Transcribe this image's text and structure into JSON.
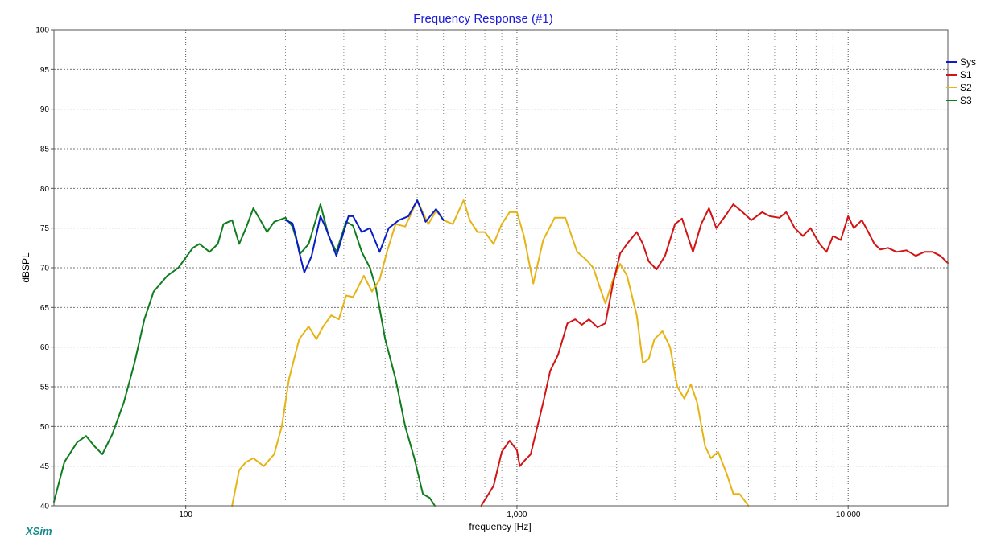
{
  "window": {
    "brand": "XSim"
  },
  "chart_data": {
    "type": "line",
    "title": "Frequency Response (#1)",
    "xlabel": "frequency [Hz]",
    "ylabel": "dBSPL",
    "x_scale": "log",
    "xlim": [
      40,
      20000
    ],
    "ylim": [
      40,
      100
    ],
    "grid": true,
    "legend_position": "top-right",
    "y_ticks": [
      40,
      45,
      50,
      55,
      60,
      65,
      70,
      75,
      80,
      85,
      90,
      95,
      100
    ],
    "x_ticks": [
      {
        "value": 100,
        "label": "100"
      },
      {
        "value": 1000,
        "label": "1,000"
      },
      {
        "value": 10000,
        "label": "10,000"
      }
    ],
    "x_gridlines": [
      100,
      200,
      300,
      400,
      500,
      600,
      700,
      800,
      900,
      1000,
      2000,
      3000,
      4000,
      5000,
      6000,
      7000,
      8000,
      9000,
      10000
    ],
    "series": [
      {
        "name": "Sys",
        "color": "#0a1ec8",
        "points": [
          [
            200,
            76
          ],
          [
            210,
            75.6
          ],
          [
            215,
            74
          ],
          [
            220,
            72
          ],
          [
            228,
            69.4
          ],
          [
            240,
            71.5
          ],
          [
            255,
            76.5
          ],
          [
            265,
            75
          ],
          [
            285,
            71.5
          ],
          [
            310,
            76.5
          ],
          [
            320,
            76.5
          ],
          [
            340,
            74.5
          ],
          [
            360,
            75
          ],
          [
            385,
            72
          ],
          [
            410,
            75
          ],
          [
            440,
            76
          ],
          [
            470,
            76.5
          ],
          [
            500,
            78.5
          ],
          [
            530,
            75.8
          ],
          [
            570,
            77.4
          ],
          [
            600,
            76
          ]
        ]
      },
      {
        "name": "S1",
        "color": "#d21414",
        "points": [
          [
            780,
            40
          ],
          [
            850,
            42.5
          ],
          [
            900,
            46.8
          ],
          [
            950,
            48.2
          ],
          [
            1000,
            47
          ],
          [
            1020,
            45
          ],
          [
            1060,
            45.8
          ],
          [
            1100,
            46.5
          ],
          [
            1200,
            53
          ],
          [
            1260,
            57
          ],
          [
            1330,
            59
          ],
          [
            1420,
            63
          ],
          [
            1500,
            63.5
          ],
          [
            1570,
            62.8
          ],
          [
            1650,
            63.5
          ],
          [
            1750,
            62.5
          ],
          [
            1850,
            63
          ],
          [
            1950,
            68
          ],
          [
            2050,
            71.8
          ],
          [
            2150,
            73
          ],
          [
            2300,
            74.5
          ],
          [
            2400,
            73
          ],
          [
            2500,
            70.8
          ],
          [
            2640,
            69.8
          ],
          [
            2800,
            71.5
          ],
          [
            3000,
            75.5
          ],
          [
            3150,
            76.2
          ],
          [
            3400,
            72
          ],
          [
            3600,
            75.5
          ],
          [
            3800,
            77.5
          ],
          [
            4000,
            75
          ],
          [
            4250,
            76.5
          ],
          [
            4500,
            78
          ],
          [
            4800,
            77
          ],
          [
            5100,
            76
          ],
          [
            5500,
            77
          ],
          [
            5800,
            76.5
          ],
          [
            6200,
            76.3
          ],
          [
            6500,
            77
          ],
          [
            6900,
            75
          ],
          [
            7300,
            74
          ],
          [
            7700,
            75
          ],
          [
            8200,
            73
          ],
          [
            8600,
            72
          ],
          [
            9000,
            74
          ],
          [
            9500,
            73.5
          ],
          [
            10000,
            76.5
          ],
          [
            10400,
            75
          ],
          [
            11000,
            76
          ],
          [
            11500,
            74.5
          ],
          [
            12000,
            73
          ],
          [
            12500,
            72.3
          ],
          [
            13200,
            72.5
          ],
          [
            14000,
            72
          ],
          [
            15000,
            72.2
          ],
          [
            16000,
            71.5
          ],
          [
            17000,
            72
          ],
          [
            18000,
            72
          ],
          [
            19000,
            71.5
          ],
          [
            20000,
            70.6
          ]
        ]
      },
      {
        "name": "S2",
        "color": "#e6b414",
        "points": [
          [
            138,
            40
          ],
          [
            145,
            44.5
          ],
          [
            152,
            45.5
          ],
          [
            160,
            46
          ],
          [
            172,
            45
          ],
          [
            185,
            46.5
          ],
          [
            195,
            50
          ],
          [
            205,
            56
          ],
          [
            220,
            61
          ],
          [
            235,
            62.6
          ],
          [
            248,
            61
          ],
          [
            260,
            62.6
          ],
          [
            275,
            64
          ],
          [
            290,
            63.5
          ],
          [
            305,
            66.5
          ],
          [
            320,
            66.3
          ],
          [
            345,
            69
          ],
          [
            365,
            67
          ],
          [
            385,
            68.5
          ],
          [
            405,
            72
          ],
          [
            430,
            75.5
          ],
          [
            460,
            75.2
          ],
          [
            500,
            78.5
          ],
          [
            540,
            75.5
          ],
          [
            570,
            77.2
          ],
          [
            600,
            76
          ],
          [
            640,
            75.5
          ],
          [
            690,
            78.5
          ],
          [
            720,
            76
          ],
          [
            760,
            74.5
          ],
          [
            800,
            74.5
          ],
          [
            850,
            73
          ],
          [
            900,
            75.5
          ],
          [
            950,
            77
          ],
          [
            1000,
            77
          ],
          [
            1050,
            74
          ],
          [
            1120,
            68
          ],
          [
            1200,
            73.5
          ],
          [
            1300,
            76.3
          ],
          [
            1400,
            76.3
          ],
          [
            1520,
            72
          ],
          [
            1620,
            71
          ],
          [
            1700,
            70
          ],
          [
            1780,
            67.5
          ],
          [
            1850,
            65.5
          ],
          [
            1950,
            68.5
          ],
          [
            2050,
            70.5
          ],
          [
            2150,
            69
          ],
          [
            2300,
            64
          ],
          [
            2400,
            58
          ],
          [
            2500,
            58.5
          ],
          [
            2600,
            61
          ],
          [
            2750,
            62
          ],
          [
            2900,
            60
          ],
          [
            3050,
            55
          ],
          [
            3200,
            53.5
          ],
          [
            3350,
            55.3
          ],
          [
            3500,
            53
          ],
          [
            3700,
            47.5
          ],
          [
            3850,
            46
          ],
          [
            4050,
            46.8
          ],
          [
            4300,
            44
          ],
          [
            4500,
            41.5
          ],
          [
            4700,
            41.5
          ],
          [
            4900,
            40.5
          ],
          [
            5000,
            40
          ]
        ]
      },
      {
        "name": "S3",
        "color": "#0f7d1e",
        "points": [
          [
            40,
            40.5
          ],
          [
            43,
            45.5
          ],
          [
            47,
            48
          ],
          [
            50,
            48.8
          ],
          [
            53,
            47.5
          ],
          [
            56,
            46.5
          ],
          [
            60,
            49
          ],
          [
            65,
            53
          ],
          [
            70,
            58
          ],
          [
            75,
            63.5
          ],
          [
            80,
            67
          ],
          [
            88,
            69
          ],
          [
            95,
            70
          ],
          [
            105,
            72.5
          ],
          [
            110,
            73
          ],
          [
            118,
            72
          ],
          [
            125,
            73
          ],
          [
            130,
            75.5
          ],
          [
            138,
            76
          ],
          [
            145,
            73
          ],
          [
            152,
            75
          ],
          [
            160,
            77.5
          ],
          [
            168,
            76
          ],
          [
            176,
            74.5
          ],
          [
            185,
            75.8
          ],
          [
            200,
            76.3
          ],
          [
            210,
            75.2
          ],
          [
            222,
            71.8
          ],
          [
            235,
            73
          ],
          [
            255,
            78
          ],
          [
            270,
            74
          ],
          [
            285,
            72
          ],
          [
            305,
            75.8
          ],
          [
            320,
            75.3
          ],
          [
            340,
            72
          ],
          [
            360,
            70
          ],
          [
            375,
            67.5
          ],
          [
            400,
            61
          ],
          [
            430,
            56
          ],
          [
            460,
            50
          ],
          [
            490,
            46
          ],
          [
            520,
            41.5
          ],
          [
            545,
            41
          ],
          [
            565,
            40
          ]
        ]
      }
    ]
  }
}
